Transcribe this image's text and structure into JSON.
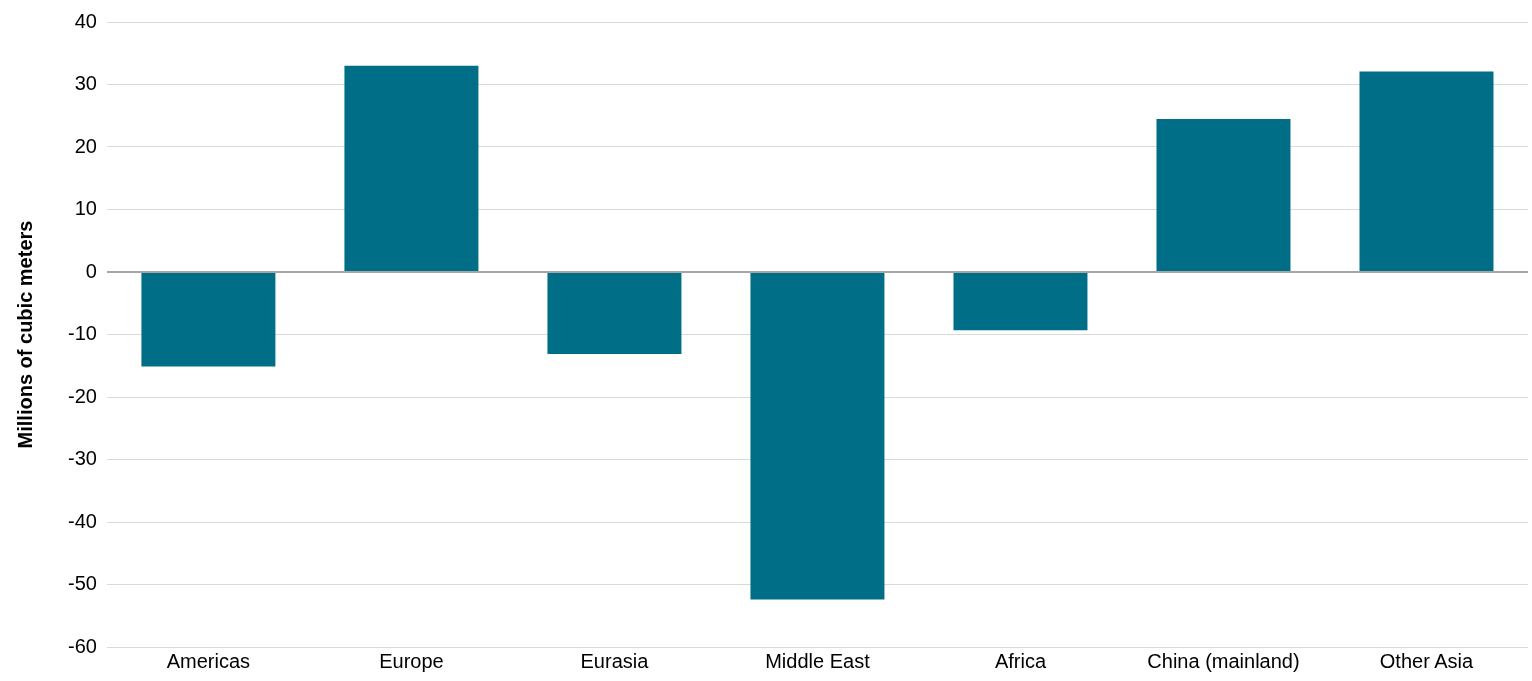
{
  "chart_data": {
    "type": "bar",
    "ylabel": "Millions of cubic meters",
    "categories": [
      "Americas",
      "Europe",
      "Eurasia",
      "Middle East",
      "Africa",
      "China (mainland)",
      "Other Asia"
    ],
    "values": [
      -15.1,
      33,
      -13.1,
      -52.4,
      -9.3,
      24.5,
      32.1
    ],
    "color": "#006e87",
    "ylim": [
      -60,
      40
    ],
    "yticks": [
      -60,
      -50,
      -40,
      -30,
      -20,
      -10,
      0,
      10,
      20,
      30,
      40
    ],
    "grid": "y",
    "legend": false
  }
}
